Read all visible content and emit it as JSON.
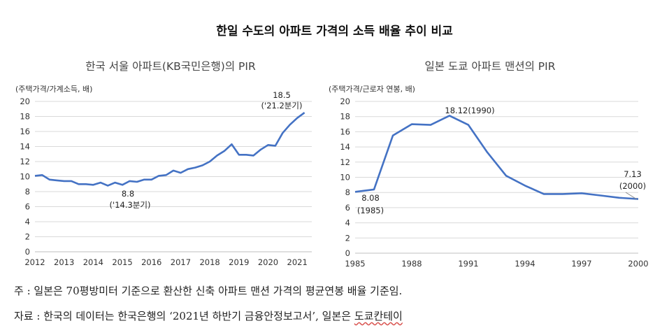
{
  "main_title": "한일 수도의 아파트 가격의 소득 배율 추이 비교",
  "chart_data": [
    {
      "type": "line",
      "title": "한국 서울 아파트(KB국민은행)의 PIR",
      "ylabel": "(주택가격/가계소득, 배)",
      "ylim": [
        0,
        20
      ],
      "yticks": [
        0,
        2,
        4,
        6,
        8,
        10,
        12,
        14,
        16,
        18,
        20
      ],
      "xlim": [
        2012,
        2021.5
      ],
      "xticks": [
        "2012",
        "2013",
        "2014",
        "2015",
        "2016",
        "2017",
        "2018",
        "2019",
        "2020",
        "2021"
      ],
      "series": [
        {
          "name": "서울 PIR",
          "color": "#4472c4",
          "x": [
            2012.0,
            2012.25,
            2012.5,
            2012.75,
            2013.0,
            2013.25,
            2013.5,
            2013.75,
            2014.0,
            2014.25,
            2014.5,
            2014.75,
            2015.0,
            2015.25,
            2015.5,
            2015.75,
            2016.0,
            2016.25,
            2016.5,
            2016.75,
            2017.0,
            2017.25,
            2017.5,
            2017.75,
            2018.0,
            2018.25,
            2018.5,
            2018.75,
            2019.0,
            2019.25,
            2019.5,
            2019.75,
            2020.0,
            2020.25,
            2020.5,
            2020.75,
            2021.0,
            2021.25
          ],
          "y": [
            10.1,
            10.2,
            9.6,
            9.5,
            9.4,
            9.4,
            9.0,
            9.0,
            8.9,
            9.2,
            8.8,
            9.2,
            8.9,
            9.4,
            9.3,
            9.6,
            9.6,
            10.1,
            10.2,
            10.8,
            10.5,
            11.0,
            11.2,
            11.5,
            12.0,
            12.8,
            13.4,
            14.3,
            12.9,
            12.9,
            12.8,
            13.6,
            14.2,
            14.1,
            15.8,
            16.9,
            17.8,
            18.5
          ]
        }
      ],
      "annotations": [
        {
          "lines": [
            "18.5",
            "('21.2분기)"
          ]
        },
        {
          "lines": [
            "8.8",
            "('14.3분기)"
          ]
        }
      ]
    },
    {
      "type": "line",
      "title": "일본 도쿄 아파트 맨션의 PIR",
      "ylabel": "(주택가격/근로자 연봉, 배)",
      "ylim": [
        0,
        20
      ],
      "yticks": [
        0,
        2,
        4,
        6,
        8,
        10,
        12,
        14,
        16,
        18,
        20
      ],
      "xlim": [
        1985,
        2000
      ],
      "xticks": [
        "1985",
        "1988",
        "1991",
        "1994",
        "1997",
        "2000"
      ],
      "series": [
        {
          "name": "도쿄 PIR",
          "color": "#4472c4",
          "x": [
            1985,
            1986,
            1987,
            1988,
            1989,
            1990,
            1991,
            1992,
            1993,
            1994,
            1995,
            1996,
            1997,
            1998,
            1999,
            2000
          ],
          "y": [
            8.08,
            8.4,
            15.5,
            17.0,
            16.9,
            18.12,
            16.9,
            13.3,
            10.2,
            8.9,
            7.8,
            7.8,
            7.9,
            7.6,
            7.3,
            7.13
          ]
        }
      ],
      "annotations": [
        {
          "lines": [
            "18.12(1990)"
          ]
        },
        {
          "lines": [
            "8.08",
            "(1985)"
          ]
        },
        {
          "lines": [
            "7.13",
            "(2000)"
          ]
        }
      ]
    }
  ],
  "notes": {
    "note1": "주 : 일본은 70평방미터 기준으로 환산한 신축 아파트 맨션 가격의 평균연봉 배율 기준임.",
    "note2_prefix": "자료 : 한국의 데이터는 한국은행의 ‘2021년 하반기 금융안정보고서’, 일본은 ",
    "note2_source": "도쿄칸테이"
  }
}
